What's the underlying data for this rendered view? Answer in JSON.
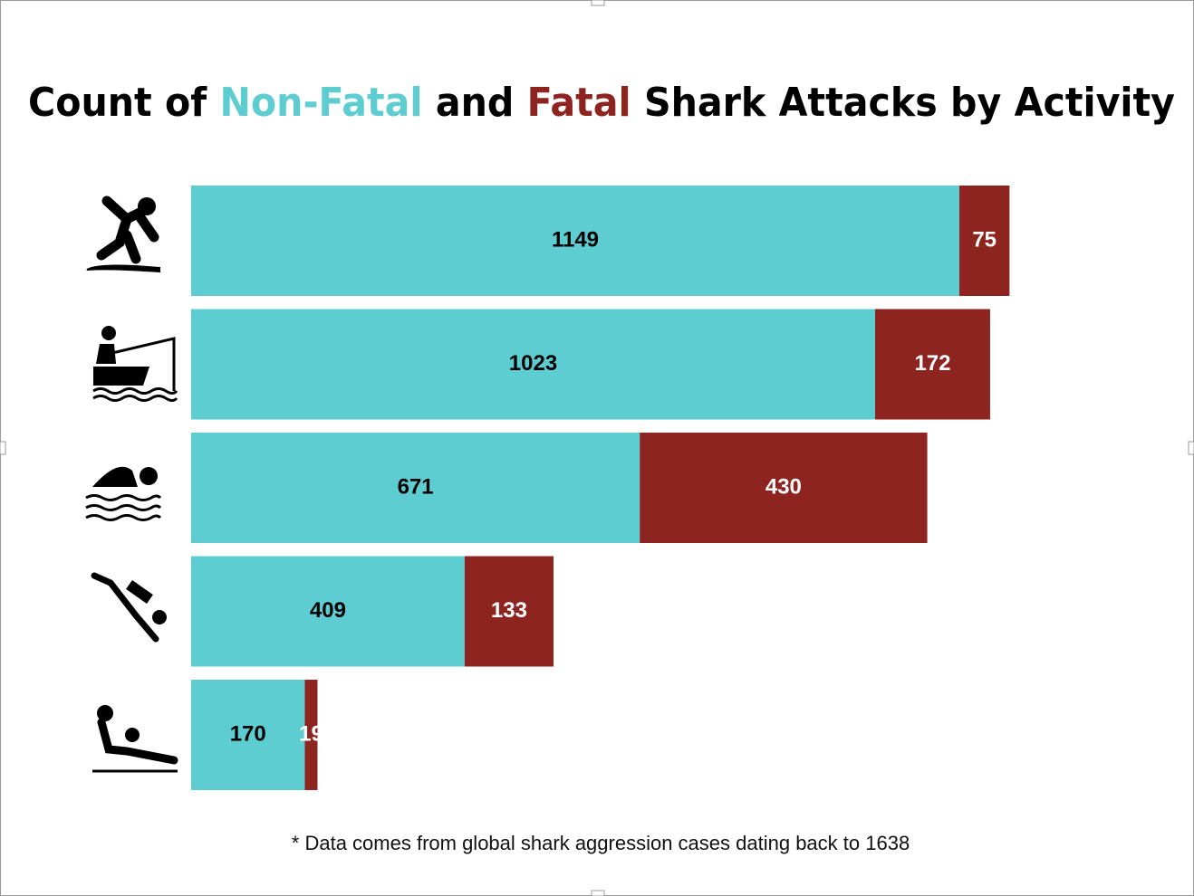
{
  "chart_data": {
    "type": "stacked-bar-horizontal",
    "title": {
      "before": "Count of",
      "middle": "and",
      "after": "Shark Attacks by Activity"
    },
    "categories": [
      null,
      null,
      null,
      null,
      null
    ],
    "series": [
      {
        "name": "Non-Fatal",
        "color": "#5ecdd1",
        "label_color": "#000000",
        "values": [
          1149,
          1023,
          671,
          409,
          170
        ]
      },
      {
        "name": "Fatal",
        "color": "#8e2420",
        "label_color": "#ffffff",
        "values": [
          75,
          172,
          430,
          133,
          19
        ]
      }
    ],
    "note": "* Data comes from global shark aggression cases dating back to 1638"
  }
}
